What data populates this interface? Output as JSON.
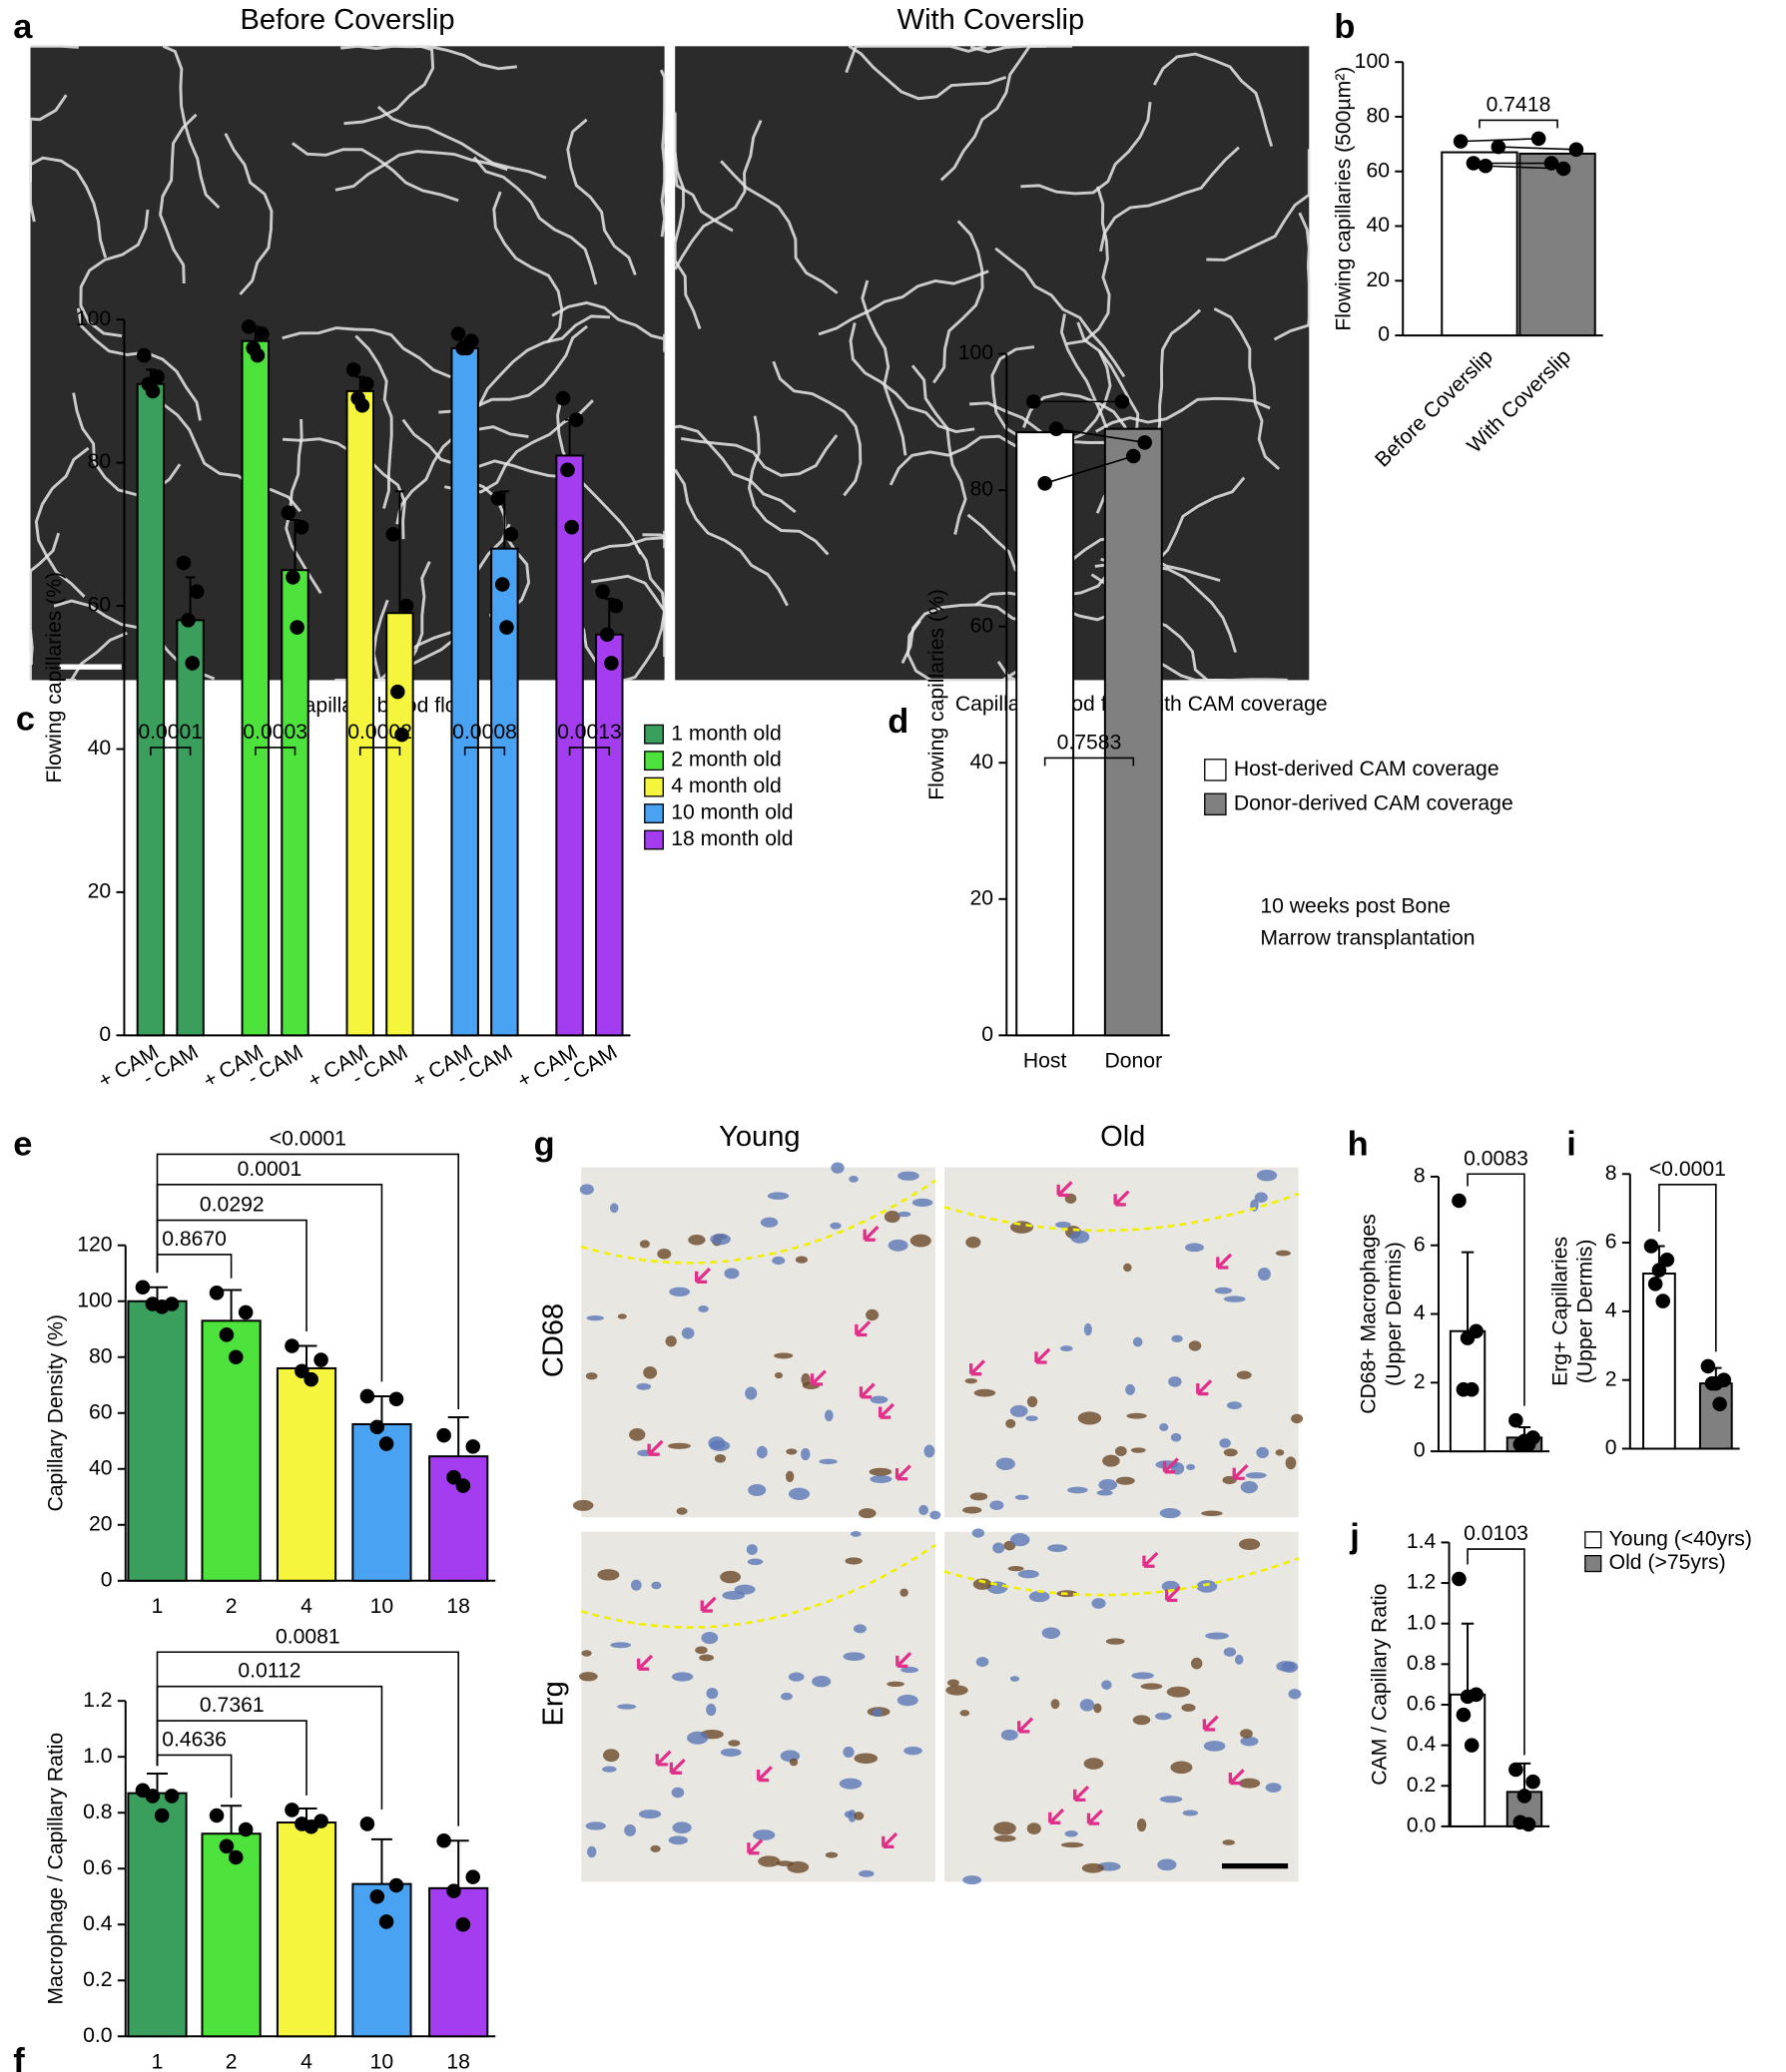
{
  "panel_labels": [
    "a",
    "b",
    "c",
    "d",
    "e",
    "f",
    "g",
    "h",
    "i",
    "j"
  ],
  "images": {
    "a_titles": [
      "Before Coverslip",
      "With Coverslip"
    ],
    "g_columns": [
      "Young",
      "Old"
    ],
    "g_rows": [
      "CD68",
      "Erg"
    ]
  },
  "chart_data": [
    {
      "type": "bar",
      "ylabel": "Flowing capillaries (500µm²)",
      "categories": [
        "Before Coverslip",
        "With Coverslip"
      ],
      "values": [
        67,
        66.5
      ],
      "colors": [
        "#ffffff",
        "#808080"
      ],
      "points": [
        [
          71,
          69,
          63,
          62
        ],
        [
          72,
          68,
          63,
          61
        ]
      ],
      "paired": true,
      "ylim": [
        0,
        100
      ],
      "yticks": [
        0,
        20,
        40,
        60,
        80,
        100
      ],
      "comparisons": [
        {
          "pair": [
            0,
            1
          ],
          "label": "0.7418"
        }
      ]
    },
    {
      "type": "grouped_bar",
      "title": "Capillary blood flow",
      "ylabel": "Flowing capillaries (%)",
      "categories": [
        "+ CAM",
        "- CAM"
      ],
      "ylim": [
        0,
        100
      ],
      "yticks": [
        0,
        20,
        40,
        60,
        80,
        100
      ],
      "series": [
        {
          "name": "1 month old",
          "color": "#3a9e5c",
          "values": [
            91,
            58
          ],
          "errors": [
            2,
            6
          ],
          "points": [
            [
              95,
              92,
              91,
              90
            ],
            [
              66,
              62,
              58,
              52
            ]
          ],
          "p_value": "0.0001"
        },
        {
          "name": "2 month old",
          "color": "#4ee33c",
          "values": [
            97,
            65
          ],
          "errors": [
            2,
            7
          ],
          "points": [
            [
              99,
              98,
              96,
              95
            ],
            [
              73,
              71,
              64,
              57
            ]
          ],
          "p_value": "0.0003"
        },
        {
          "name": "4 month old",
          "color": "#f4f53c",
          "values": [
            90,
            59
          ],
          "errors": [
            2,
            17
          ],
          "points": [
            [
              93,
              91,
              89,
              88
            ],
            [
              70,
              60,
              48,
              42
            ]
          ],
          "p_value": "0.0002"
        },
        {
          "name": "10 month old",
          "color": "#4aa3f2",
          "values": [
            96,
            68
          ],
          "errors": [
            1,
            8
          ],
          "points": [
            [
              98,
              97,
              96,
              96
            ],
            [
              75,
              70,
              63,
              57
            ]
          ],
          "p_value": "0.0008"
        },
        {
          "name": "18 month old",
          "color": "#a43cf0",
          "values": [
            81,
            56
          ],
          "errors": [
            5,
            5
          ],
          "points": [
            [
              89,
              86,
              79,
              71
            ],
            [
              62,
              60,
              56,
              52
            ]
          ],
          "p_value": "0.0013"
        }
      ]
    },
    {
      "type": "bar",
      "title": "Capillary blood flow with CAM coverage",
      "ylabel": "Flowing capillaries (%)",
      "categories": [
        "Host",
        "Donor"
      ],
      "values": [
        88.5,
        89
      ],
      "colors": [
        "#ffffff",
        "#808080"
      ],
      "points": [
        [
          93,
          89,
          81
        ],
        [
          93,
          87,
          85
        ]
      ],
      "paired": true,
      "legend": [
        "Host-derived CAM coverage",
        "Donor-derived CAM coverage"
      ],
      "note": [
        "10 weeks post Bone",
        "Marrow transplantation"
      ],
      "ylim": [
        0,
        100
      ],
      "yticks": [
        0,
        20,
        40,
        60,
        80,
        100
      ],
      "comparisons": [
        {
          "pair": [
            0,
            1
          ],
          "label": "0.7583"
        }
      ]
    },
    {
      "type": "bar",
      "ylabel": "Capillary Density (%)",
      "categories": [
        "1",
        "2",
        "4",
        "10",
        "18"
      ],
      "values": [
        100,
        93,
        76,
        56,
        44.5
      ],
      "errors": [
        5,
        11,
        8,
        10,
        14
      ],
      "colors": [
        "#3a9e5c",
        "#4ee33c",
        "#f4f53c",
        "#4aa3f2",
        "#a43cf0"
      ],
      "points": [
        [
          105,
          99,
          99,
          98
        ],
        [
          103,
          96,
          88,
          80
        ],
        [
          84,
          79,
          75,
          72
        ],
        [
          66,
          65,
          55,
          49
        ],
        [
          52,
          48,
          37,
          34
        ]
      ],
      "ylim": [
        0,
        120
      ],
      "yticks": [
        0,
        20,
        40,
        60,
        80,
        100,
        120
      ],
      "comparisons": [
        {
          "pair": [
            0,
            1
          ],
          "label": "0.8670"
        },
        {
          "pair": [
            0,
            2
          ],
          "label": "0.0292"
        },
        {
          "pair": [
            0,
            3
          ],
          "label": "0.0001"
        },
        {
          "pair": [
            0,
            4
          ],
          "label": "<0.0001"
        }
      ]
    },
    {
      "type": "bar",
      "ylabel": "Macrophage / Capillary Ratio",
      "categories": [
        "1",
        "2",
        "4",
        "10",
        "18"
      ],
      "values": [
        0.87,
        0.725,
        0.765,
        0.545,
        0.53
      ],
      "errors": [
        0.07,
        0.1,
        0.05,
        0.16,
        0.17
      ],
      "colors": [
        "#3a9e5c",
        "#4ee33c",
        "#f4f53c",
        "#4aa3f2",
        "#a43cf0"
      ],
      "points": [
        [
          0.88,
          0.86,
          0.86,
          0.79
        ],
        [
          0.79,
          0.74,
          0.68,
          0.64
        ],
        [
          0.81,
          0.77,
          0.76,
          0.75
        ],
        [
          0.76,
          0.54,
          0.5,
          0.41
        ],
        [
          0.7,
          0.57,
          0.52,
          0.4
        ]
      ],
      "ylim": [
        0,
        1.2
      ],
      "yticks": [
        {
          "value": 0,
          "label": "0.0"
        },
        0.2,
        0.4,
        0.6,
        0.8,
        {
          "value": 1,
          "label": "1.0"
        },
        1.2
      ],
      "comparisons": [
        {
          "pair": [
            0,
            1
          ],
          "label": "0.4636"
        },
        {
          "pair": [
            0,
            2
          ],
          "label": "0.7361"
        },
        {
          "pair": [
            0,
            3
          ],
          "label": "0.0112"
        },
        {
          "pair": [
            0,
            4
          ],
          "label": "0.0081"
        }
      ]
    },
    {
      "type": "bar",
      "ylabel": [
        "CD68+ Macrophages",
        "(Upper Dermis)"
      ],
      "values": [
        3.5,
        0.4
      ],
      "errors": [
        2.3,
        0.3
      ],
      "colors": [
        "#ffffff",
        "#808080"
      ],
      "points": [
        [
          7.3,
          3.5,
          3.3,
          1.8,
          1.8
        ],
        [
          0.9,
          0.4,
          0.3,
          0.2,
          0.2
        ]
      ],
      "ylim": [
        0,
        8
      ],
      "yticks": [
        0,
        2,
        4,
        6,
        8
      ],
      "comparisons": [
        {
          "pair": [
            0,
            1
          ],
          "label": "0.0083"
        }
      ]
    },
    {
      "type": "bar",
      "ylabel": [
        "Erg+ Capillaries",
        "(Upper Dermis)"
      ],
      "values": [
        5.1,
        1.9
      ],
      "errors": [
        0.8,
        0.45
      ],
      "colors": [
        "#ffffff",
        "#808080"
      ],
      "points": [
        [
          5.9,
          5.5,
          5.2,
          4.8,
          4.3
        ],
        [
          2.4,
          2.0,
          1.9,
          1.9,
          1.3
        ]
      ],
      "ylim": [
        0,
        8
      ],
      "yticks": [
        0,
        2,
        4,
        6,
        8
      ],
      "comparisons": [
        {
          "pair": [
            0,
            1
          ],
          "label": "<0.0001"
        }
      ]
    },
    {
      "type": "bar",
      "ylabel": "CAM / Capillary Ratio",
      "values": [
        0.65,
        0.17
      ],
      "errors": [
        0.35,
        0.14
      ],
      "colors": [
        "#ffffff",
        "#808080"
      ],
      "points": [
        [
          1.22,
          0.65,
          0.64,
          0.55,
          0.4
        ],
        [
          0.28,
          0.22,
          0.15,
          0.02,
          0.01
        ]
      ],
      "legend": [
        "Young (<40yrs)",
        "Old (>75yrs)"
      ],
      "ylim": [
        0,
        1.4
      ],
      "yticks": [
        {
          "value": 0,
          "label": "0.0"
        },
        0.2,
        0.4,
        0.6,
        0.8,
        {
          "value": 1,
          "label": "1.0"
        },
        1.2,
        1.4
      ],
      "comparisons": [
        {
          "pair": [
            0,
            1
          ],
          "label": "0.0103"
        }
      ]
    }
  ]
}
